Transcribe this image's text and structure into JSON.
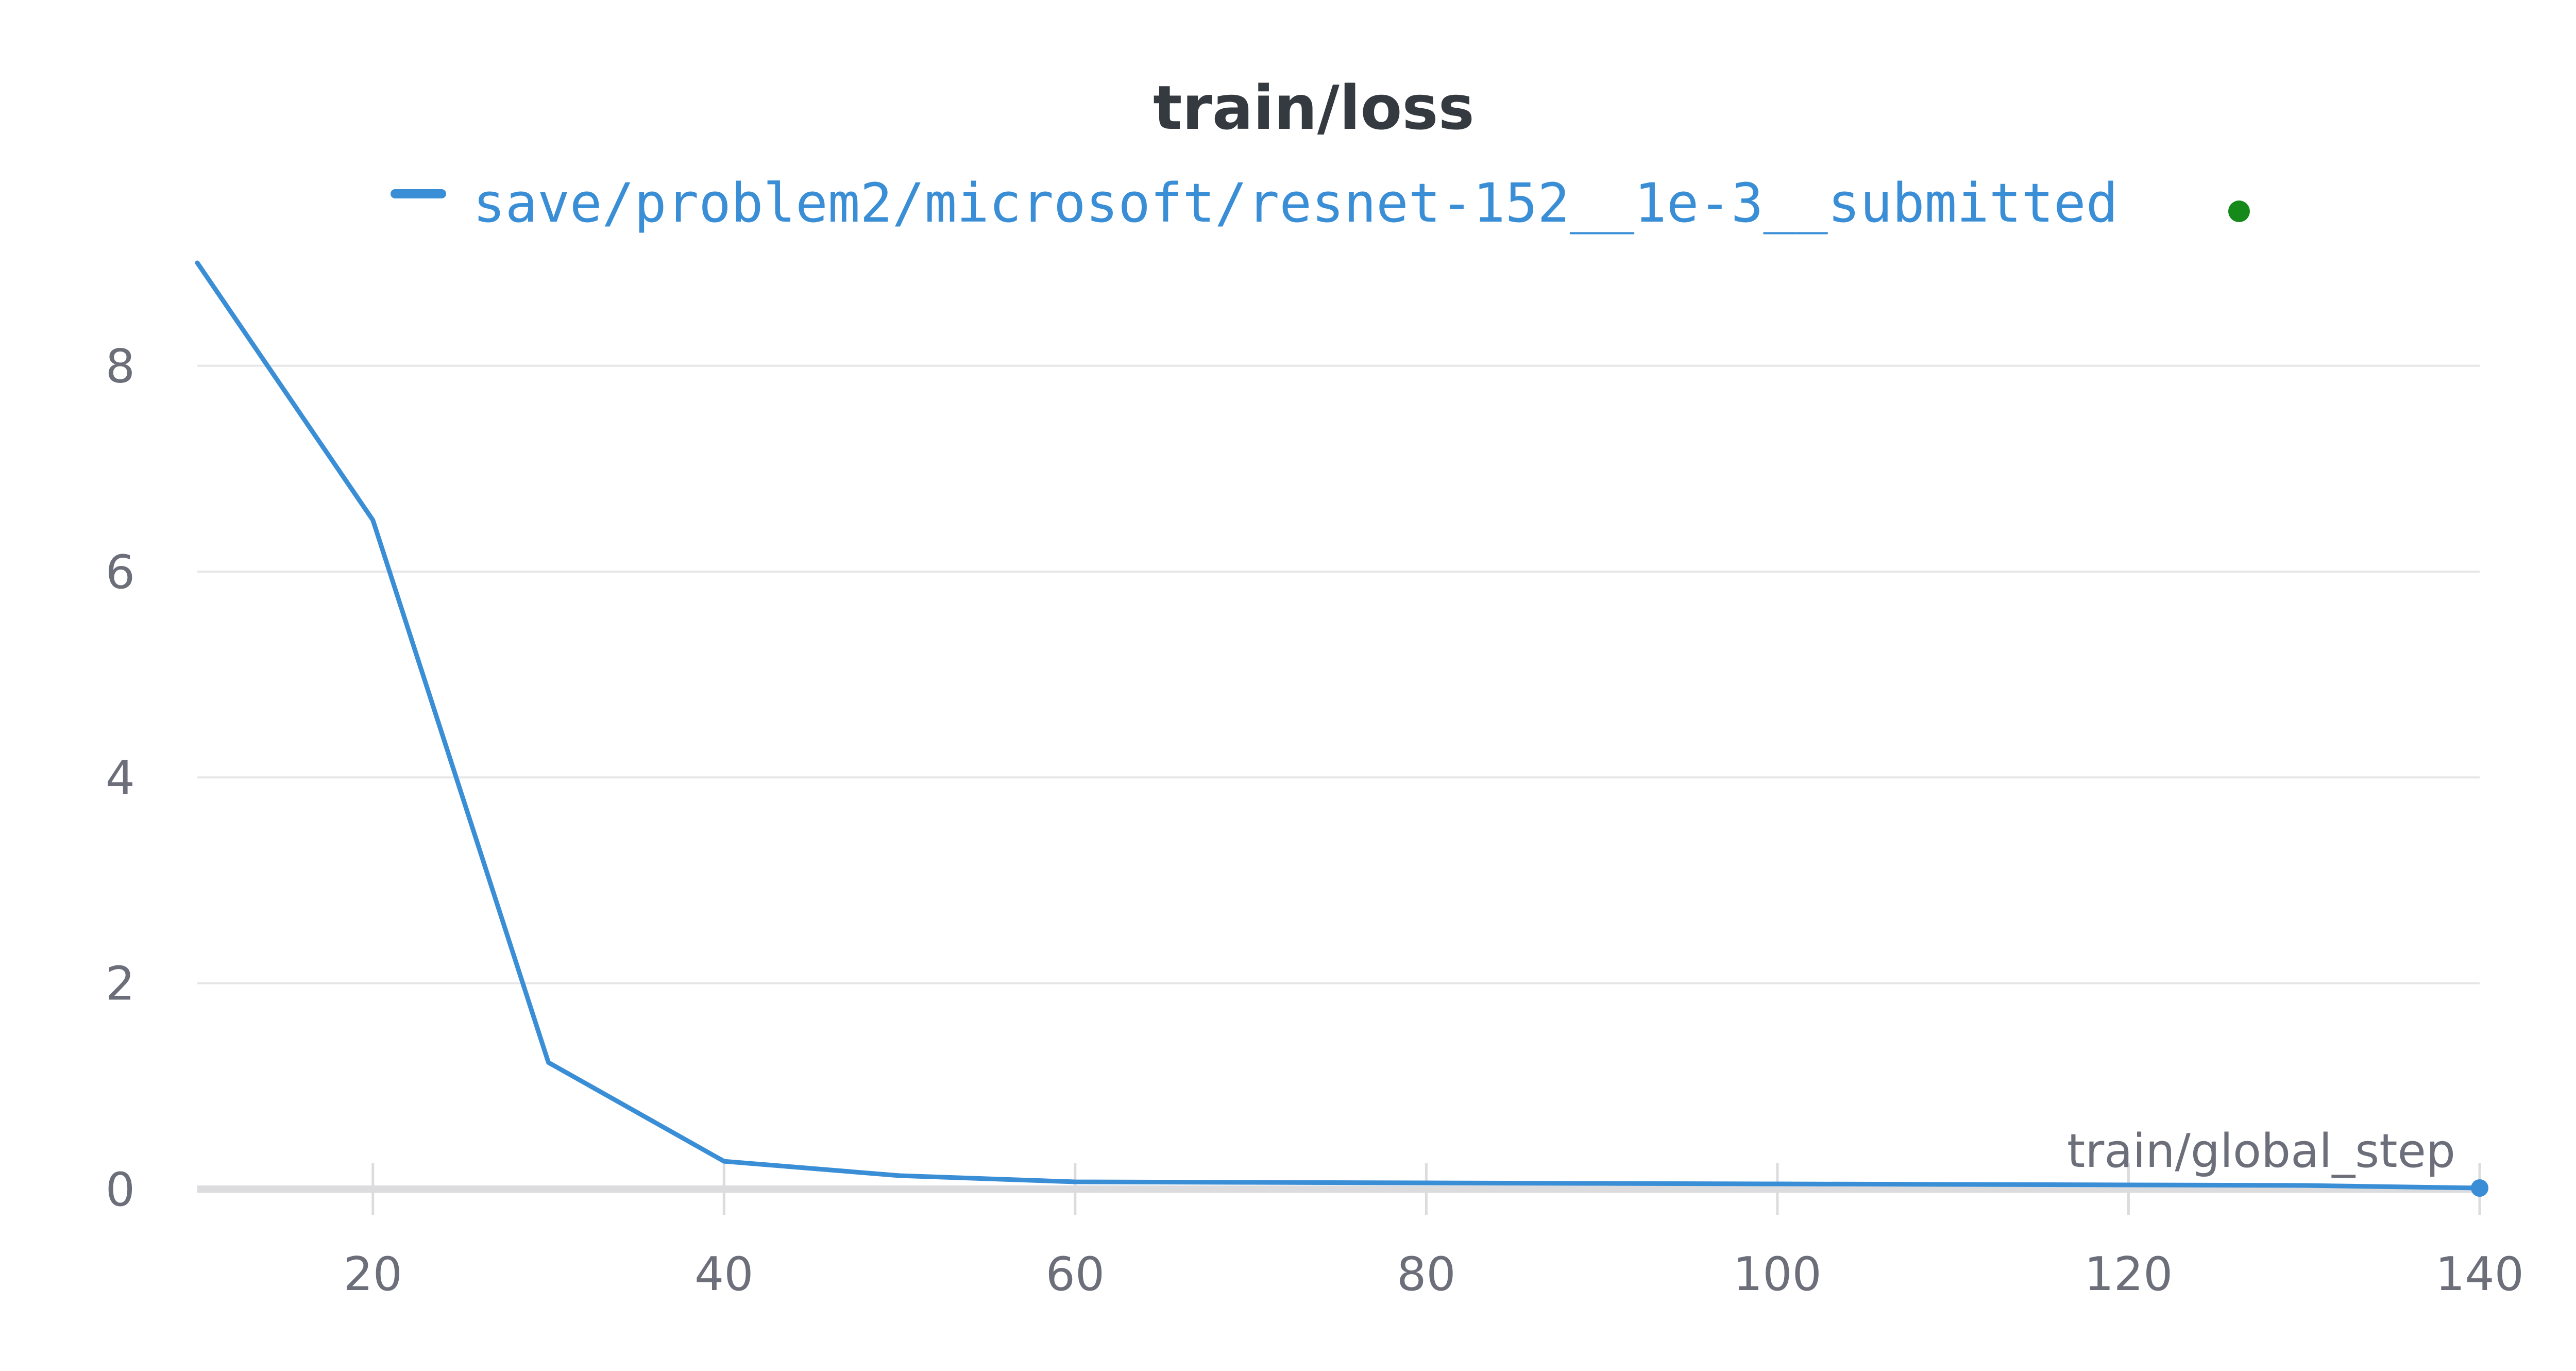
{
  "chart_data": {
    "type": "line",
    "title": "train/loss",
    "xlabel": "train/global_step",
    "ylabel": "",
    "xlim": [
      10,
      140
    ],
    "ylim": [
      0,
      9
    ],
    "x_ticks": [
      20,
      40,
      60,
      80,
      100,
      120,
      140
    ],
    "y_ticks": [
      0,
      2,
      4,
      6,
      8
    ],
    "grid": true,
    "legend_position": "top-center",
    "series": [
      {
        "name": "save/problem2/microsoft/resnet-152__1e-3__submitted",
        "color": "#3a8ed6",
        "status_color": "#15891a",
        "x": [
          10,
          20,
          30,
          40,
          50,
          60,
          70,
          80,
          90,
          100,
          110,
          120,
          130,
          140
        ],
        "y": [
          9.0,
          6.5,
          1.23,
          0.27,
          0.13,
          0.07,
          0.065,
          0.06,
          0.055,
          0.05,
          0.045,
          0.04,
          0.035,
          0.01
        ]
      }
    ],
    "colors": {
      "grid": "#e6e6e9",
      "zero_line": "#dcdcdf",
      "tick_text": "#6c6f7a",
      "title": "#343a40"
    }
  }
}
